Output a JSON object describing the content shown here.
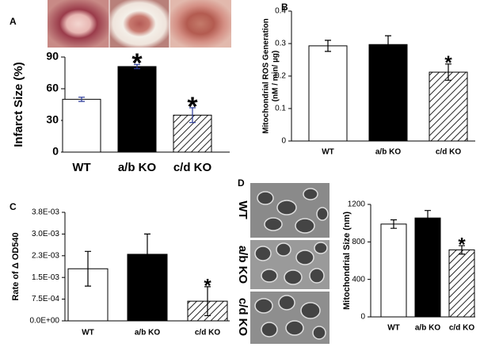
{
  "chart_data": [
    {
      "type": "bar",
      "panel_label": "A",
      "ylabel": [
        "Infarct  Size (%)"
      ],
      "categories": [
        "WT",
        "a/b KO",
        "c/d KO"
      ],
      "values": [
        50,
        81,
        35
      ],
      "errors": [
        2,
        2,
        7
      ],
      "fills": [
        "white",
        "black",
        "hatch"
      ],
      "error_color": "#2a3a9a",
      "ylim": [
        0,
        90
      ],
      "yticks": [
        0,
        30,
        60,
        90
      ],
      "annotations": [
        {
          "text": "*",
          "x": "a/b KO"
        },
        {
          "text": "*",
          "x": "c/d KO"
        }
      ]
    },
    {
      "type": "bar",
      "panel_label": "B",
      "ylabel": [
        "Mitochondrial ROS Generation",
        "(nM / min/ µg)"
      ],
      "categories": [
        "WT",
        "a/b KO",
        "c/d KO"
      ],
      "values": [
        0.293,
        0.297,
        0.212
      ],
      "errors": [
        0.017,
        0.027,
        0.025
      ],
      "fills": [
        "white",
        "black",
        "hatch"
      ],
      "error_color": "#000000",
      "ylim": [
        0,
        0.4
      ],
      "yticks": [
        0,
        0.1,
        0.2,
        0.3,
        0.4
      ],
      "annotations": [
        {
          "text": "*",
          "x": "c/d KO"
        }
      ]
    },
    {
      "type": "bar",
      "panel_label": "C",
      "ylabel": [
        "Rate of Δ OD540"
      ],
      "categories": [
        "WT",
        "a/b KO",
        "c/d KO"
      ],
      "values": [
        0.0018,
        0.0023,
        0.00068
      ],
      "errors": [
        0.0006,
        0.0007,
        0.0005
      ],
      "fills": [
        "white",
        "black",
        "hatch"
      ],
      "error_color": "#000000",
      "ylim": [
        0,
        0.00375
      ],
      "yticks": [
        {
          "value": 0,
          "label": "0.0E+00"
        },
        {
          "value": 0.00075,
          "label": "7.5E-04"
        },
        {
          "value": 0.0015,
          "label": "1.5E-03"
        },
        {
          "value": 0.00225,
          "label": "2.3E-03"
        },
        {
          "value": 0.003,
          "label": "3.0E-03"
        },
        {
          "value": 0.00375,
          "label": "3.8E-03"
        }
      ],
      "annotations": [
        {
          "text": "*",
          "x": "c/d KO"
        }
      ]
    },
    {
      "type": "bar",
      "panel_label": "D",
      "ylabel": [
        "Mitochondrial Size (nm)"
      ],
      "image_labels": [
        "WT",
        "a/b KO",
        "c/d KO"
      ],
      "categories": [
        "WT",
        "a/b KO",
        "c/d KO"
      ],
      "values": [
        990,
        1055,
        715
      ],
      "errors": [
        45,
        80,
        45
      ],
      "fills": [
        "white",
        "black",
        "hatch"
      ],
      "error_color": "#000000",
      "ylim": [
        0,
        1200
      ],
      "yticks": [
        0,
        400,
        800,
        1200
      ],
      "annotations": [
        {
          "text": "*",
          "x": "c/d KO"
        }
      ]
    }
  ]
}
